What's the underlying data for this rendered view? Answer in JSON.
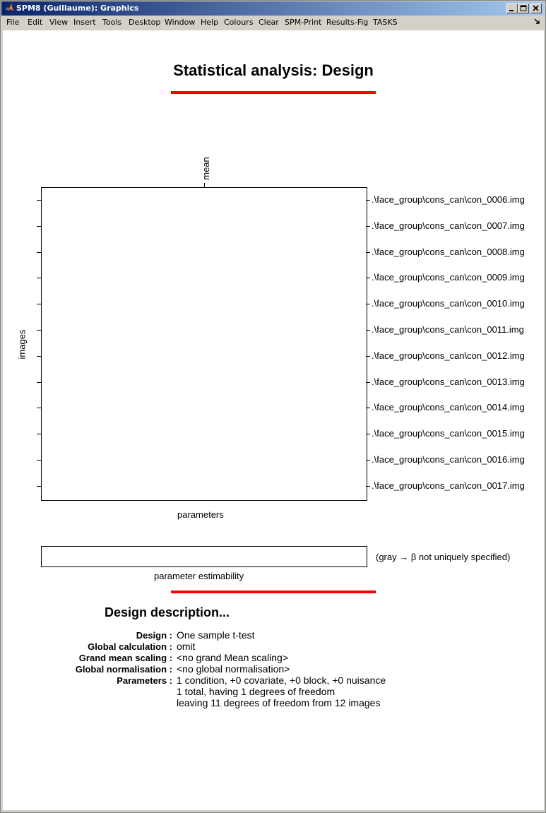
{
  "window": {
    "title": "SPM8 (Guillaume): Graphics"
  },
  "menu": [
    "File",
    "Edit",
    "View",
    "Insert",
    "Tools",
    "Desktop",
    "Window",
    "Help",
    "Colours",
    "Clear",
    "SPM-Print",
    "Results-Fig",
    "TASKS"
  ],
  "figure": {
    "title": "Statistical analysis: Design",
    "accent_color": "#ff0000",
    "column_label": "mean",
    "y_axis_label": "images",
    "x_axis_label": "parameters",
    "images": [
      ".\\face_group\\cons_can\\con_0006.img",
      ".\\face_group\\cons_can\\con_0007.img",
      ".\\face_group\\cons_can\\con_0008.img",
      ".\\face_group\\cons_can\\con_0009.img",
      ".\\face_group\\cons_can\\con_0010.img",
      ".\\face_group\\cons_can\\con_0011.img",
      ".\\face_group\\cons_can\\con_0012.img",
      ".\\face_group\\cons_can\\con_0013.img",
      ".\\face_group\\cons_can\\con_0014.img",
      ".\\face_group\\cons_can\\con_0015.img",
      ".\\face_group\\cons_can\\con_0016.img",
      ".\\face_group\\cons_can\\con_0017.img"
    ],
    "estimability_label": "parameter estimability",
    "estimability_note": "(gray → β not uniquely specified)"
  },
  "description": {
    "title": "Design description...",
    "rows": [
      {
        "label": "Design :",
        "values": [
          "One sample t-test"
        ]
      },
      {
        "label": "Global calculation :",
        "values": [
          "omit"
        ]
      },
      {
        "label": "Grand mean scaling :",
        "values": [
          "<no grand Mean scaling>"
        ]
      },
      {
        "label": "Global normalisation :",
        "values": [
          "<no global normalisation>"
        ]
      },
      {
        "label": "Parameters :",
        "values": [
          "1 condition, +0 covariate, +0 block, +0 nuisance",
          "1 total, having 1 degrees of freedom",
          "leaving 11 degrees of freedom from 12 images"
        ]
      }
    ]
  }
}
